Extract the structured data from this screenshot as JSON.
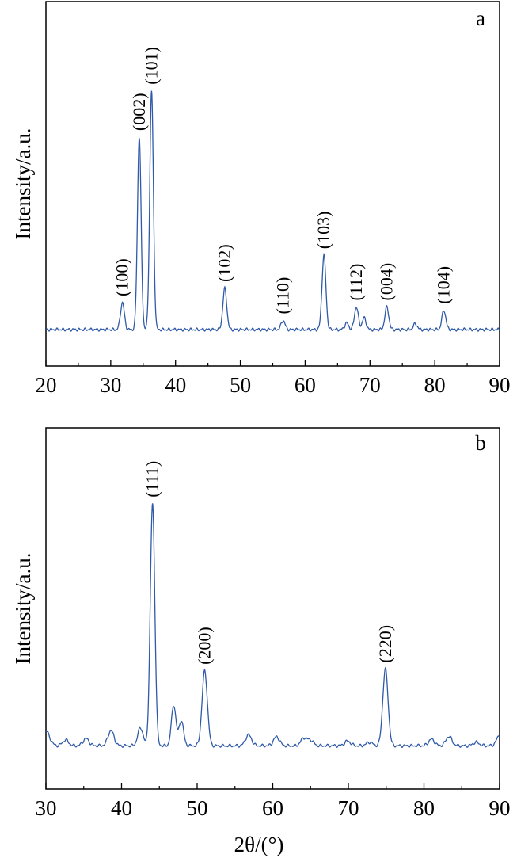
{
  "chart_data": [
    {
      "type": "line",
      "panel_label": "a",
      "ylabel": "Intensity/a.u.",
      "xlabel": "",
      "xlim": [
        20,
        90
      ],
      "ylim": [
        0,
        100
      ],
      "x_ticks": [
        20,
        30,
        40,
        50,
        60,
        70,
        80,
        90
      ],
      "grid": false,
      "line_color": "#2f5aa8",
      "baseline": 10,
      "peaks": [
        {
          "x": 31.8,
          "y": 17.4,
          "w": 0.3
        },
        {
          "x": 34.4,
          "y": 62.8,
          "w": 0.28
        },
        {
          "x": 36.3,
          "y": 75.5,
          "w": 0.28
        },
        {
          "x": 47.6,
          "y": 21.3,
          "w": 0.3
        },
        {
          "x": 56.6,
          "y": 12.5,
          "w": 0.3
        },
        {
          "x": 62.9,
          "y": 30.4,
          "w": 0.3
        },
        {
          "x": 66.4,
          "y": 11.8,
          "w": 0.3
        },
        {
          "x": 67.9,
          "y": 16.2,
          "w": 0.3
        },
        {
          "x": 69.1,
          "y": 13.2,
          "w": 0.3
        },
        {
          "x": 72.6,
          "y": 16.2,
          "w": 0.3
        },
        {
          "x": 77.0,
          "y": 11.6,
          "w": 0.3
        },
        {
          "x": 81.4,
          "y": 15.3,
          "w": 0.3
        }
      ],
      "annotations": [
        {
          "text": "(100)",
          "x": 31.8,
          "y": 17.4
        },
        {
          "text": "(002)",
          "x": 34.4,
          "y": 62.8
        },
        {
          "text": "(101)",
          "x": 36.3,
          "y": 75.5
        },
        {
          "text": "(102)",
          "x": 47.6,
          "y": 21.3
        },
        {
          "text": "(110)",
          "x": 56.6,
          "y": 12.5
        },
        {
          "text": "(103)",
          "x": 62.9,
          "y": 30.4
        },
        {
          "text": "(112)",
          "x": 67.9,
          "y": 16.2
        },
        {
          "text": "(004)",
          "x": 72.6,
          "y": 16.2
        },
        {
          "text": "(104)",
          "x": 81.4,
          "y": 15.3
        }
      ]
    },
    {
      "type": "line",
      "panel_label": "b",
      "ylabel": "Intensity/a.u.",
      "xlabel": "2θ/(°)",
      "xlim": [
        30,
        90
      ],
      "ylim": [
        0,
        100
      ],
      "x_ticks": [
        30,
        40,
        50,
        60,
        70,
        80,
        90
      ],
      "grid": false,
      "line_color": "#2f5aa8",
      "baseline": 12,
      "peaks": [
        {
          "x": 30.0,
          "y": 16.0,
          "w": 0.5
        },
        {
          "x": 32.6,
          "y": 13.6,
          "w": 0.4
        },
        {
          "x": 35.3,
          "y": 14.0,
          "w": 0.4
        },
        {
          "x": 38.6,
          "y": 16.2,
          "w": 0.4
        },
        {
          "x": 42.5,
          "y": 17.0,
          "w": 0.35
        },
        {
          "x": 44.1,
          "y": 79.0,
          "w": 0.3
        },
        {
          "x": 46.9,
          "y": 23.2,
          "w": 0.3
        },
        {
          "x": 47.9,
          "y": 19.0,
          "w": 0.3
        },
        {
          "x": 51.0,
          "y": 32.7,
          "w": 0.35
        },
        {
          "x": 56.8,
          "y": 15.0,
          "w": 0.4
        },
        {
          "x": 60.5,
          "y": 14.5,
          "w": 0.4
        },
        {
          "x": 64.1,
          "y": 14.1,
          "w": 0.4
        },
        {
          "x": 65.0,
          "y": 13.5,
          "w": 0.4
        },
        {
          "x": 69.9,
          "y": 13.3,
          "w": 0.4
        },
        {
          "x": 72.8,
          "y": 13.0,
          "w": 0.4
        },
        {
          "x": 74.9,
          "y": 33.2,
          "w": 0.35
        },
        {
          "x": 81.0,
          "y": 13.8,
          "w": 0.4
        },
        {
          "x": 83.3,
          "y": 14.6,
          "w": 0.4
        },
        {
          "x": 86.9,
          "y": 13.0,
          "w": 0.4
        },
        {
          "x": 90.0,
          "y": 14.8,
          "w": 0.4
        }
      ],
      "annotations": [
        {
          "text": "(111)",
          "x": 44.1,
          "y": 79.0
        },
        {
          "text": "(200)",
          "x": 51.0,
          "y": 32.7
        },
        {
          "text": "(220)",
          "x": 74.9,
          "y": 33.2
        }
      ]
    }
  ]
}
